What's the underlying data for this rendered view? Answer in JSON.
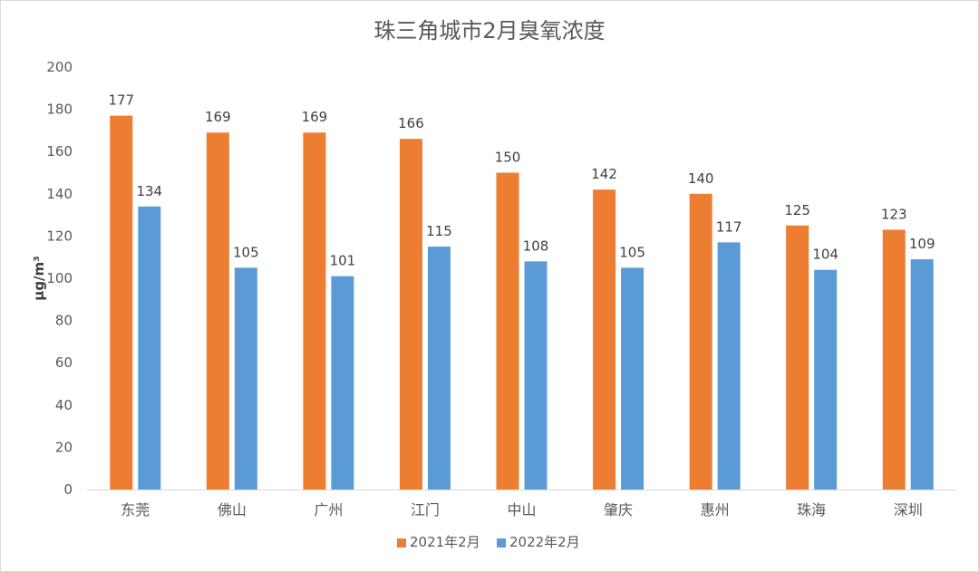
{
  "chart_data": {
    "type": "bar",
    "title": "珠三角城市2月臭氧浓度",
    "ylabel": "μg/m³",
    "xlabel": "",
    "ylim": [
      0,
      200
    ],
    "yticks": [
      0,
      20,
      40,
      60,
      80,
      100,
      120,
      140,
      160,
      180,
      200
    ],
    "grid": false,
    "legend_position": "bottom",
    "categories": [
      "东莞",
      "佛山",
      "广州",
      "江门",
      "中山",
      "肇庆",
      "惠州",
      "珠海",
      "深圳"
    ],
    "series": [
      {
        "name": "2021年2月",
        "color": "#ED7D31",
        "values": [
          177,
          169,
          169,
          166,
          150,
          142,
          140,
          125,
          123
        ]
      },
      {
        "name": "2022年2月",
        "color": "#5B9BD5",
        "values": [
          134,
          105,
          101,
          115,
          108,
          105,
          117,
          104,
          109
        ]
      }
    ]
  }
}
